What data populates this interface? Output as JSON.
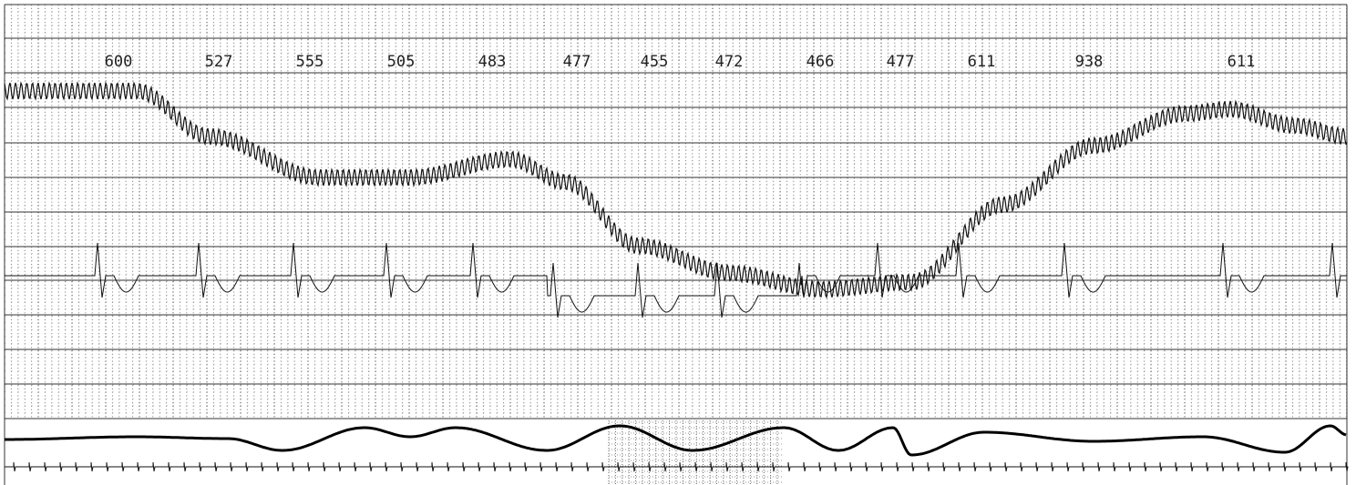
{
  "rr_intervals": [
    600,
    527,
    555,
    505,
    483,
    477,
    455,
    472,
    466,
    477,
    611,
    938,
    611
  ]
}
